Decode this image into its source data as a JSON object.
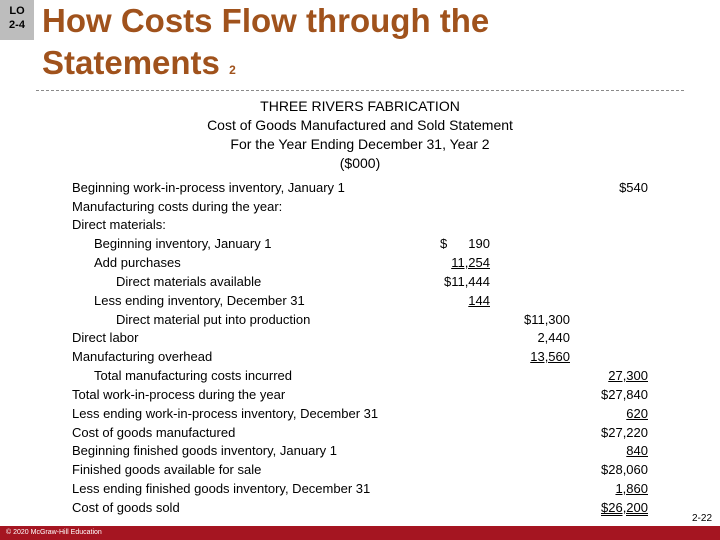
{
  "lo_badge": {
    "line1": "LO",
    "line2": "2-4"
  },
  "slide_title": {
    "main_line1": "How Costs Flow through the",
    "main_line2": "Statements",
    "suffix": "2"
  },
  "statement": {
    "company": "THREE RIVERS FABRICATION",
    "name": "Cost of Goods Manufactured and Sold Statement",
    "period": "For the Year Ending December 31, Year 2",
    "unit": "($000)",
    "lines": [
      {
        "label": "Beginning work-in-process inventory, January 1"
      },
      {
        "label": "Manufacturing costs during the year:"
      },
      {
        "label": "Direct materials:"
      },
      {
        "label": "Beginning inventory, January 1"
      },
      {
        "label": "Add purchases"
      },
      {
        "label": "Direct materials available"
      },
      {
        "label": "Less ending inventory, December 31"
      },
      {
        "label": "Direct material put into production"
      },
      {
        "label": "Direct labor"
      },
      {
        "label": "Manufacturing overhead"
      },
      {
        "label": "Total manufacturing costs incurred"
      },
      {
        "label": "Total work-in-process during the year"
      },
      {
        "label": "Less ending work-in-process inventory, December 31"
      },
      {
        "label": "Cost of goods manufactured"
      },
      {
        "label": "Beginning finished goods inventory, January 1"
      },
      {
        "label": "Finished goods available for sale"
      },
      {
        "label": "Less ending finished goods inventory, December 31"
      },
      {
        "label": "Cost of goods sold"
      }
    ],
    "values": {
      "beg_wip": "$540",
      "dm_beg_dollar": "$",
      "dm_beg": "190",
      "purchases": "11,254",
      "dm_available": "$11,444",
      "dm_ending": "144",
      "dm_used": "$11,300",
      "direct_labor": "2,440",
      "overhead": "13,560",
      "total_mfg": "27,300",
      "total_wip": "$27,840",
      "end_wip": "620",
      "cogm": "$27,220",
      "beg_fg": "840",
      "fg_available": "$28,060",
      "end_fg": "1,860",
      "cogs": "$26,200"
    }
  },
  "footer": {
    "copyright": "© 2020 McGraw-Hill Education",
    "slide_number": "2-22"
  }
}
